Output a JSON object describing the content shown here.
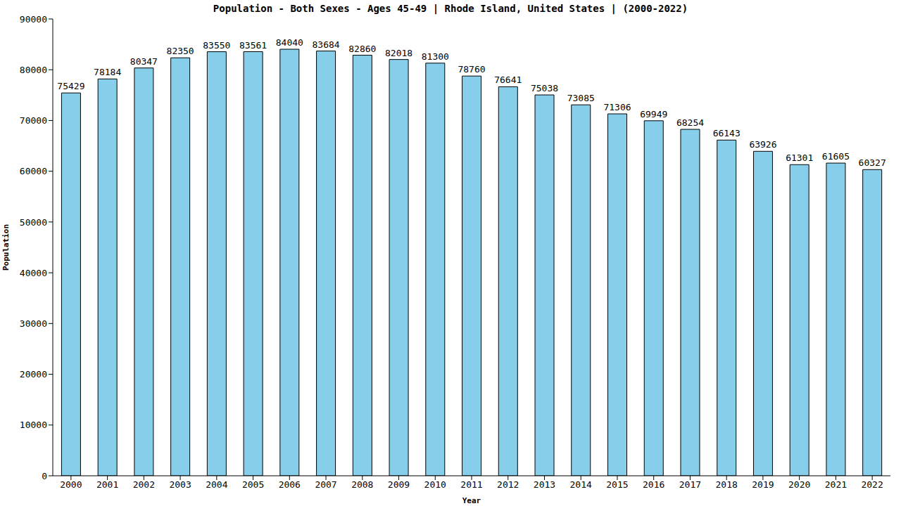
{
  "chart_data": {
    "type": "bar",
    "title": "Population - Both Sexes - Ages 45-49 | Rhode Island, United States | (2000-2022)",
    "x_label": "Year",
    "y_label": "Population",
    "categories": [
      "2000",
      "2001",
      "2002",
      "2003",
      "2004",
      "2005",
      "2006",
      "2007",
      "2008",
      "2009",
      "2010",
      "2011",
      "2012",
      "2013",
      "2014",
      "2015",
      "2016",
      "2017",
      "2018",
      "2019",
      "2020",
      "2021",
      "2022"
    ],
    "values": [
      75429,
      78184,
      80347,
      82350,
      83550,
      83561,
      84040,
      83684,
      82860,
      82018,
      81300,
      78760,
      76641,
      75038,
      73085,
      71306,
      69949,
      68254,
      66143,
      63926,
      61301,
      61605,
      60327
    ],
    "color": "#87ceeb",
    "ylim": [
      0,
      90000
    ],
    "yticks": [
      0,
      10000,
      20000,
      30000,
      40000,
      50000,
      60000,
      70000,
      80000,
      90000
    ],
    "grid": false,
    "data_labels": true
  }
}
